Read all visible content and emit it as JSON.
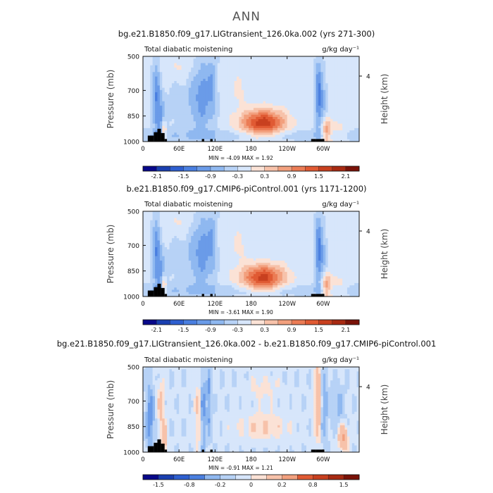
{
  "page_title": "ANN",
  "chart_data": [
    {
      "type": "heatmap",
      "title": "bg.e21.B1850.f09_g17.LIGtransient_126.0ka.002 (yrs 271-300)",
      "subtitle_left": "Total diabatic moistening",
      "units": "g/kg day⁻¹",
      "ylabel": "Pressure (mb)",
      "ylabel_right": "Height (km)",
      "right_tick": "4",
      "yticks": [
        "500",
        "700",
        "850",
        "1000"
      ],
      "xticks": [
        "0",
        "60E",
        "120E",
        "180",
        "120W",
        "60W"
      ],
      "stats": "MIN =  -4.09   MAX =   1.92",
      "colorbar_labels": [
        "-2.1",
        "-1.5",
        "-0.9",
        "-0.3",
        "0.3",
        "0.9",
        "1.5",
        "2.1"
      ],
      "colorbar_levels": [
        -2.4,
        -2.1,
        -1.8,
        -1.5,
        -1.2,
        -0.9,
        -0.6,
        -0.3,
        0,
        0.3,
        0.6,
        0.9,
        1.2,
        1.5,
        1.8,
        2.1,
        2.4
      ],
      "min": -4.09,
      "max": 1.92
    },
    {
      "type": "heatmap",
      "title": "b.e21.B1850.f09_g17.CMIP6-piControl.001 (yrs 1171-1200)",
      "subtitle_left": "Total diabatic moistening",
      "units": "g/kg day⁻¹",
      "ylabel": "Pressure (mb)",
      "ylabel_right": "Height (km)",
      "right_tick": "4",
      "yticks": [
        "500",
        "700",
        "850",
        "1000"
      ],
      "xticks": [
        "0",
        "60E",
        "120E",
        "180",
        "120W",
        "60W"
      ],
      "stats": "MIN =  -3.61   MAX =   1.90",
      "colorbar_labels": [
        "-2.1",
        "-1.5",
        "-0.9",
        "-0.3",
        "0.3",
        "0.9",
        "1.5",
        "2.1"
      ],
      "colorbar_levels": [
        -2.4,
        -2.1,
        -1.8,
        -1.5,
        -1.2,
        -0.9,
        -0.6,
        -0.3,
        0,
        0.3,
        0.6,
        0.9,
        1.2,
        1.5,
        1.8,
        2.1,
        2.4
      ],
      "min": -3.61,
      "max": 1.9
    },
    {
      "type": "heatmap",
      "title": "bg.e21.B1850.f09_g17.LIGtransient_126.0ka.002 - b.e21.B1850.f09_g17.CMIP6-piControl.001",
      "subtitle_left": "Total diabatic moistening",
      "units": "g/kg day⁻¹",
      "ylabel": "Pressure (mb)",
      "ylabel_right": "Height (km)",
      "right_tick": "4",
      "yticks": [
        "500",
        "700",
        "850",
        "1000"
      ],
      "xticks": [
        "0",
        "60E",
        "120E",
        "180",
        "120W",
        "60W"
      ],
      "stats": "MIN =  -0.91   MAX =   1.21",
      "colorbar_labels": [
        "-1.5",
        "-0.8",
        "-0.2",
        "0",
        "0.2",
        "0.8",
        "1.5"
      ],
      "colorbar_levels": [
        -2.0,
        -1.5,
        -1.2,
        -0.8,
        -0.5,
        -0.2,
        -0.1,
        0,
        0.1,
        0.2,
        0.5,
        0.8,
        1.2,
        1.5,
        2.0
      ],
      "min": -0.91,
      "max": 1.21
    }
  ],
  "colors": {
    "colormap": [
      "#08088a",
      "#1a3fb0",
      "#2e5fd0",
      "#4a7fe0",
      "#6a9be8",
      "#8fb8f0",
      "#b7d2f6",
      "#d7e6fb",
      "#fbe2d6",
      "#f7c2aa",
      "#f2a07e",
      "#eb7c55",
      "#e05a33",
      "#c8401f",
      "#a82a12",
      "#7a1208"
    ],
    "terrain": "#000000"
  }
}
